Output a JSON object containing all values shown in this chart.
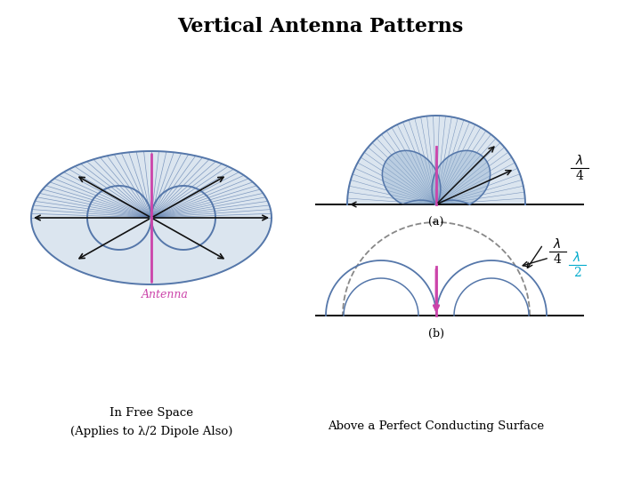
{
  "title": "Vertical Antenna Patterns",
  "title_fontsize": 16,
  "title_fontweight": "bold",
  "bg_color": "#ffffff",
  "antenna_color": "#cc44aa",
  "fill_color": "#8aabcc",
  "fill_alpha": 0.3,
  "line_color": "#5577aa",
  "line_width": 1.4,
  "arrow_color": "#111111",
  "label_antenna": "Antenna",
  "label_a": "(a)",
  "label_b": "(b)",
  "label_left": "In Free Space\n(Applies to λ/2 Dipole Also)",
  "label_right": "Above a Perfect Conducting Surface",
  "cyan_color": "#00aacc",
  "gray_dash_color": "#888888"
}
